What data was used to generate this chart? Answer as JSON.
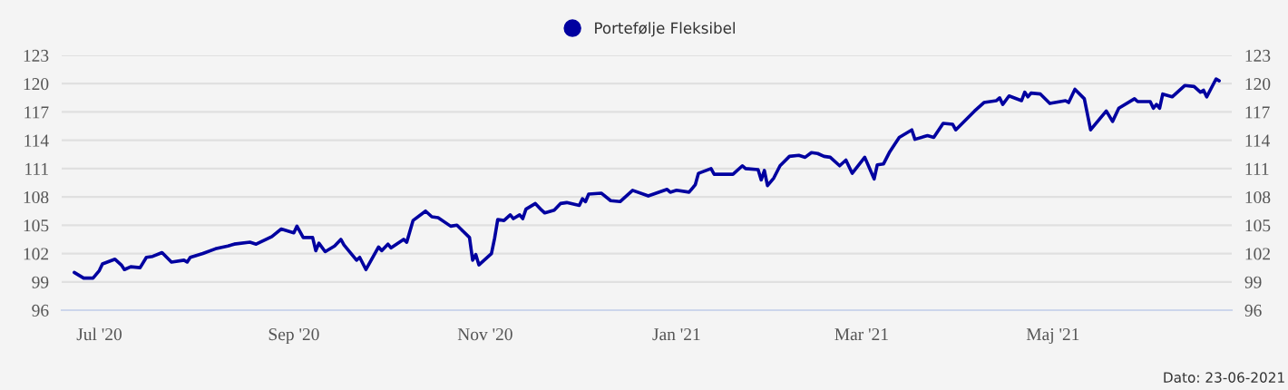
{
  "chart_data": {
    "type": "line",
    "series": [
      {
        "name": "Portefølje Fleksibel",
        "color": "#0000a0",
        "line_style": "solid",
        "x": [
          "2020-06-23",
          "2020-06-26",
          "2020-06-29",
          "2020-07-01",
          "2020-07-02",
          "2020-07-06",
          "2020-07-08",
          "2020-07-09",
          "2020-07-11",
          "2020-07-14",
          "2020-07-16",
          "2020-07-18",
          "2020-07-21",
          "2020-07-24",
          "2020-07-28",
          "2020-07-29",
          "2020-07-30",
          "2020-08-03",
          "2020-08-07",
          "2020-08-11",
          "2020-08-13",
          "2020-08-18",
          "2020-08-20",
          "2020-08-25",
          "2020-08-28",
          "2020-09-01",
          "2020-09-02",
          "2020-09-04",
          "2020-09-07",
          "2020-09-08",
          "2020-09-09",
          "2020-09-11",
          "2020-09-14",
          "2020-09-16",
          "2020-09-17",
          "2020-09-21",
          "2020-09-22",
          "2020-09-24",
          "2020-09-28",
          "2020-09-29",
          "2020-10-01",
          "2020-10-02",
          "2020-10-06",
          "2020-10-07",
          "2020-10-09",
          "2020-10-13",
          "2020-10-15",
          "2020-10-17",
          "2020-10-21",
          "2020-10-23",
          "2020-10-27",
          "2020-10-28",
          "2020-10-29",
          "2020-10-30",
          "2020-11-03",
          "2020-11-04",
          "2020-11-05",
          "2020-11-07",
          "2020-11-09",
          "2020-11-10",
          "2020-11-12",
          "2020-11-13",
          "2020-11-14",
          "2020-11-17",
          "2020-11-19",
          "2020-11-20",
          "2020-11-23",
          "2020-11-25",
          "2020-11-27",
          "2020-12-01",
          "2020-12-02",
          "2020-12-03",
          "2020-12-04",
          "2020-12-08",
          "2020-12-11",
          "2020-12-14",
          "2020-12-16",
          "2020-12-18",
          "2020-12-23",
          "2020-12-29",
          "2020-12-30",
          "2021-01-01",
          "2021-01-05",
          "2021-01-07",
          "2021-01-08",
          "2021-01-12",
          "2021-01-13",
          "2021-01-19",
          "2021-01-22",
          "2021-01-23",
          "2021-01-27",
          "2021-01-28",
          "2021-01-29",
          "2021-01-30",
          "2021-02-01",
          "2021-02-03",
          "2021-02-06",
          "2021-02-09",
          "2021-02-11",
          "2021-02-13",
          "2021-02-15",
          "2021-02-17",
          "2021-02-19",
          "2021-02-22",
          "2021-02-24",
          "2021-02-26",
          "2021-03-02",
          "2021-03-05",
          "2021-03-06",
          "2021-03-08",
          "2021-03-10",
          "2021-03-13",
          "2021-03-17",
          "2021-03-18",
          "2021-03-22",
          "2021-03-24",
          "2021-03-27",
          "2021-03-30",
          "2021-03-31",
          "2021-04-06",
          "2021-04-09",
          "2021-04-13",
          "2021-04-14",
          "2021-04-15",
          "2021-04-17",
          "2021-04-21",
          "2021-04-22",
          "2021-04-23",
          "2021-04-24",
          "2021-04-27",
          "2021-04-30",
          "2021-05-05",
          "2021-05-06",
          "2021-05-08",
          "2021-05-11",
          "2021-05-13",
          "2021-05-18",
          "2021-05-20",
          "2021-05-22",
          "2021-05-27",
          "2021-05-28",
          "2021-06-01",
          "2021-06-02",
          "2021-06-03",
          "2021-06-04",
          "2021-06-05",
          "2021-06-08",
          "2021-06-12",
          "2021-06-15",
          "2021-06-17",
          "2021-06-18",
          "2021-06-19",
          "2021-06-22",
          "2021-06-23"
        ],
        "values": [
          100.0,
          99.4,
          99.4,
          100.2,
          100.9,
          101.4,
          100.8,
          100.3,
          100.6,
          100.5,
          101.6,
          101.7,
          102.1,
          101.1,
          101.3,
          101.1,
          101.6,
          102.0,
          102.5,
          102.8,
          103.0,
          103.2,
          103.0,
          103.8,
          104.6,
          104.2,
          104.9,
          103.7,
          103.7,
          102.3,
          103.1,
          102.2,
          102.8,
          103.5,
          102.9,
          101.3,
          101.6,
          100.3,
          102.7,
          102.3,
          103.0,
          102.6,
          103.5,
          103.2,
          105.5,
          106.5,
          105.9,
          105.8,
          104.9,
          105.0,
          103.7,
          101.3,
          101.9,
          100.8,
          102.0,
          103.6,
          105.6,
          105.5,
          106.1,
          105.7,
          106.1,
          105.7,
          106.7,
          107.3,
          106.6,
          106.3,
          106.6,
          107.3,
          107.4,
          107.1,
          107.8,
          107.5,
          108.3,
          108.4,
          107.6,
          107.5,
          108.1,
          108.7,
          108.1,
          108.8,
          108.5,
          108.7,
          108.5,
          109.3,
          110.5,
          111.0,
          110.4,
          110.4,
          111.3,
          111.0,
          110.9,
          109.8,
          110.8,
          109.2,
          110.0,
          111.3,
          112.3,
          112.4,
          112.2,
          112.7,
          112.6,
          112.3,
          112.2,
          111.3,
          111.9,
          110.5,
          112.2,
          109.9,
          111.4,
          111.5,
          112.8,
          114.3,
          115.1,
          114.1,
          114.5,
          114.3,
          115.8,
          115.7,
          115.1,
          117.1,
          118.0,
          118.2,
          118.5,
          117.8,
          118.7,
          118.2,
          119.1,
          118.6,
          119.0,
          118.9,
          117.9,
          118.2,
          118.0,
          119.4,
          118.4,
          115.1,
          117.1,
          116.0,
          117.4,
          118.4,
          118.1,
          118.1,
          117.4,
          117.8,
          117.4,
          118.9,
          118.6,
          119.8,
          119.7,
          119.1,
          119.3,
          118.6,
          120.5,
          120.3
        ]
      }
    ],
    "xlim": [
      "2020-06-19",
      "2021-06-27"
    ],
    "xticks": [
      {
        "value": "2020-07-01",
        "label": "Jul '20"
      },
      {
        "value": "2020-09-01",
        "label": "Sep '20"
      },
      {
        "value": "2020-11-01",
        "label": "Nov '20"
      },
      {
        "value": "2021-01-01",
        "label": "Jan '21"
      },
      {
        "value": "2021-03-01",
        "label": "Mar '21"
      },
      {
        "value": "2021-05-01",
        "label": "Maj '21"
      }
    ],
    "ylim": [
      96,
      123
    ],
    "yticks": [
      96,
      99,
      102,
      105,
      108,
      111,
      114,
      117,
      120,
      123
    ],
    "y2lim": [
      96,
      123
    ],
    "y2ticks": [
      96,
      99,
      102,
      105,
      108,
      111,
      114,
      117,
      120,
      123
    ],
    "grid": "y",
    "legend": "top",
    "annotations": [
      "Dato: 23-06-2021"
    ]
  }
}
